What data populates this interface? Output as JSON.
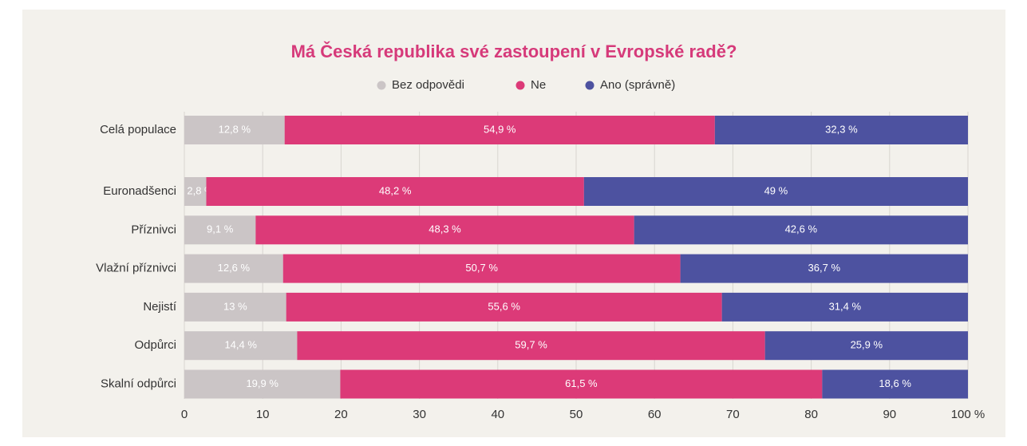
{
  "chart_data": {
    "type": "stacked_barh",
    "title": "Má Česká republika své zastoupení v Evropské radě?",
    "categories": [
      "Celá populace",
      "Euronadšenci",
      "Příznivci",
      "Vlažní příznivci",
      "Nejistí",
      "Odpůrci",
      "Skalní odpůrci"
    ],
    "series": [
      {
        "name": "Bez odpovědi",
        "color": "#cbc5c6",
        "values": [
          12.8,
          2.8,
          9.1,
          12.6,
          13,
          14.4,
          19.9
        ],
        "value_labels": [
          "12,8 %",
          "2,8 %",
          "9,1 %",
          "12,6 %",
          "13 %",
          "14,4 %",
          "19,9 %"
        ]
      },
      {
        "name": "Ne",
        "color": "#dc3a78",
        "values": [
          54.9,
          48.2,
          48.3,
          50.7,
          55.6,
          59.7,
          61.5
        ],
        "value_labels": [
          "54,9 %",
          "48,2 %",
          "48,3 %",
          "50,7 %",
          "55,6 %",
          "59,7 %",
          "61,5 %"
        ]
      },
      {
        "name": "Ano (správně)",
        "color": "#4d52a0",
        "values": [
          32.3,
          49,
          42.6,
          36.7,
          31.4,
          25.9,
          18.6
        ],
        "value_labels": [
          "32,3 %",
          "49 %",
          "42,6 %",
          "36,7 %",
          "31,4 %",
          "25,9 %",
          "18,6 %"
        ]
      }
    ],
    "xlim": [
      0,
      100
    ],
    "xticks": [
      0,
      10,
      20,
      30,
      40,
      50,
      60,
      70,
      80,
      90,
      {
        "value": 100,
        "label": "100 %"
      }
    ],
    "grid": true
  }
}
